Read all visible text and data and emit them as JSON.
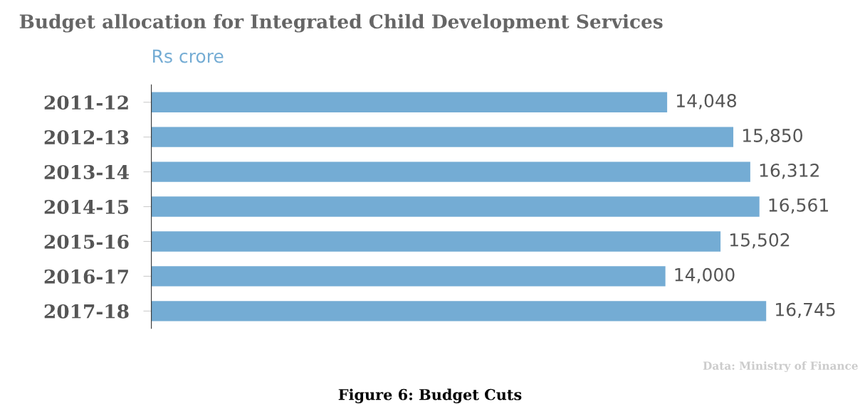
{
  "chart_data": {
    "type": "bar",
    "orientation": "horizontal",
    "title": "Budget allocation for Integrated Child Development Services",
    "subtitle": "Rs crore",
    "categories": [
      "2011-12",
      "2012-13",
      "2013-14",
      "2014-15",
      "2015-16",
      "2016-17",
      "2017-18"
    ],
    "values": [
      14048,
      15850,
      16312,
      16561,
      15502,
      14000,
      16745
    ],
    "value_labels": [
      "14,048",
      "15,850",
      "16,312",
      "16,561",
      "15,502",
      "14,000",
      "16,745"
    ],
    "color": "#74acd4",
    "grid": false,
    "legend": false,
    "tick_labels": "y",
    "annotations": [
      "Data: Ministry of Finance",
      "Figure 6: Budget Cuts"
    ]
  }
}
